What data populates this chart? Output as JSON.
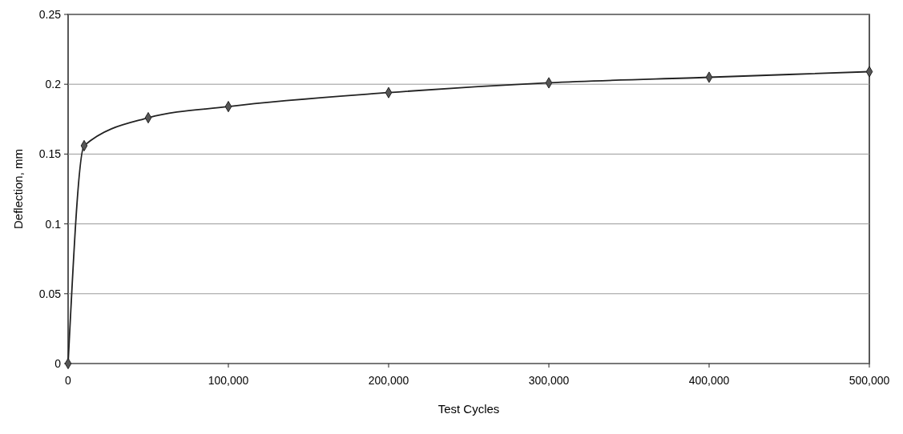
{
  "chart_data": {
    "type": "line",
    "xlabel": "Test Cycles",
    "ylabel": "Deflection, mm",
    "x": [
      0,
      10000,
      50000,
      100000,
      200000,
      300000,
      400000,
      500000
    ],
    "series": [
      {
        "color": "#222222",
        "values": [
          0,
          0.156,
          0.176,
          0.184,
          0.194,
          0.201,
          0.205,
          0.209
        ]
      }
    ],
    "xlim": [
      0,
      500000
    ],
    "xticks": [
      0,
      {
        "value": 100000,
        "label": "100,000"
      },
      {
        "value": 200000,
        "label": "200,000"
      },
      {
        "value": 300000,
        "label": "300,000"
      },
      {
        "value": 400000,
        "label": "400,000"
      },
      {
        "value": 500000,
        "label": "500,000"
      }
    ],
    "ylim": [
      0,
      0.25
    ],
    "yticks": [
      0,
      0.05,
      0.1,
      0.15,
      0.2,
      0.25
    ],
    "grid": "y",
    "marker": "diamond",
    "line_style": "solid"
  }
}
